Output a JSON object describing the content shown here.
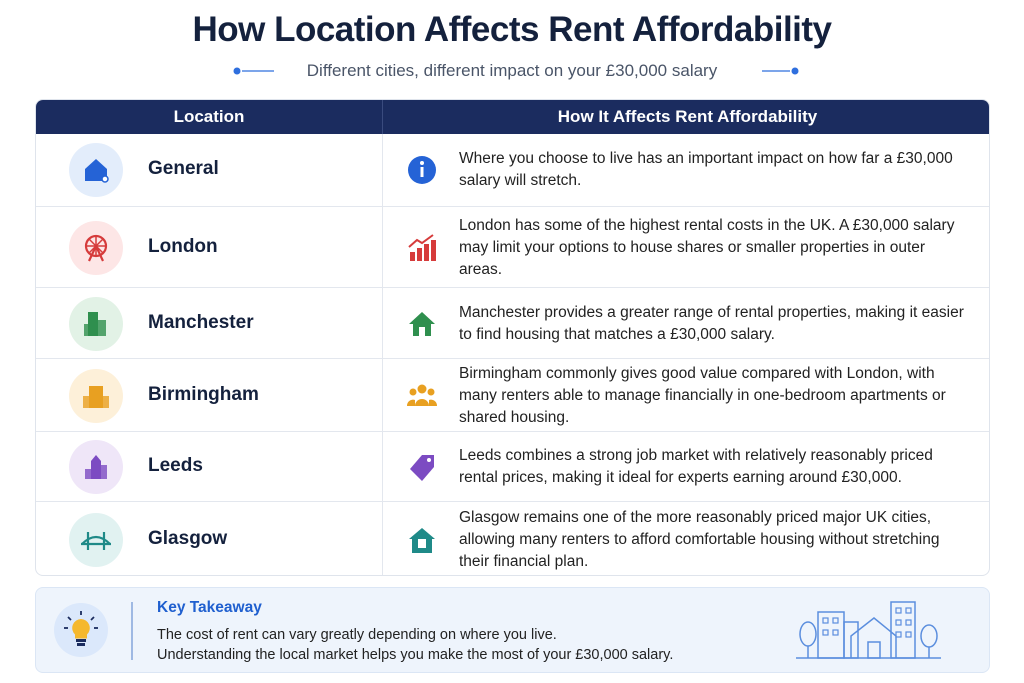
{
  "header": {
    "title": "How Location Affects Rent Affordability",
    "subtitle": "Different cities, different impact on your £30,000 salary"
  },
  "table": {
    "columns": [
      "Location",
      "How It Affects Rent Affordability"
    ],
    "rows": [
      [
        "General",
        "Where you choose to live has an important impact on how far a £30,000 salary will stretch."
      ],
      [
        "London",
        "London has some of the highest rental costs in the UK. A £30,000 salary may limit your options to house shares or smaller properties in outer areas."
      ],
      [
        "Manchester",
        "Manchester provides a greater range of rental properties, making it easier to find housing that matches a £30,000 salary."
      ],
      [
        "Birmingham",
        "Birmingham commonly gives good value compared with London, with many renters able to manage financially in one-bedroom apartments or shared housing."
      ],
      [
        "Leeds",
        "Leeds combines a strong job market with relatively reasonably priced rental prices, making it ideal for experts earning around £30,000."
      ],
      [
        "Glasgow",
        "Glasgow remains one of the more reasonably priced major UK cities, allowing many renters to afford comfortable housing without stretching their financial plan."
      ]
    ]
  },
  "takeaway": {
    "title": "Key Takeaway",
    "lines": [
      "The cost of rent can vary greatly depending on where you live.",
      "Understanding the local market helps you make the most of your £30,000 salary."
    ]
  }
}
